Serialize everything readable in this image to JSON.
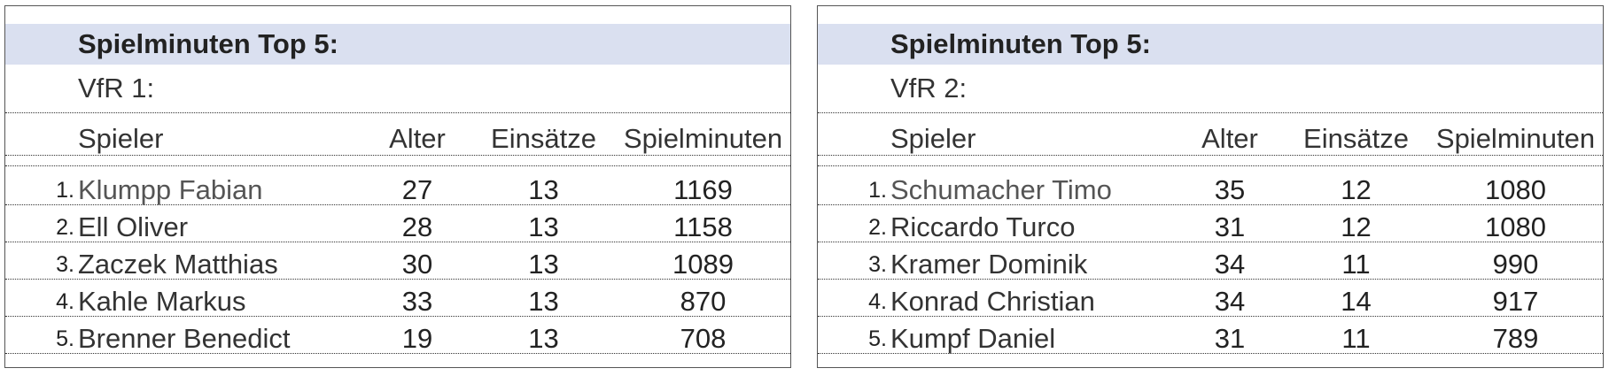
{
  "tables": [
    {
      "title": "Spielminuten Top 5:",
      "team": "VfR 1:",
      "headers": {
        "player": "Spieler",
        "age": "Alter",
        "appearances": "Einsätze",
        "minutes": "Spielminuten"
      },
      "rows": [
        {
          "rank": "1.",
          "name": "Klumpp Fabian",
          "age": "27",
          "appearances": "13",
          "minutes": "1169"
        },
        {
          "rank": "2.",
          "name": "Ell Oliver",
          "age": "28",
          "appearances": "13",
          "minutes": "1158"
        },
        {
          "rank": "3.",
          "name": "Zaczek Matthias",
          "age": "30",
          "appearances": "13",
          "minutes": "1089"
        },
        {
          "rank": "4.",
          "name": "Kahle Markus",
          "age": "33",
          "appearances": "13",
          "minutes": "870"
        },
        {
          "rank": "5.",
          "name": "Brenner Benedict",
          "age": "19",
          "appearances": "13",
          "minutes": "708"
        }
      ]
    },
    {
      "title": "Spielminuten Top 5:",
      "team": "VfR 2:",
      "headers": {
        "player": "Spieler",
        "age": "Alter",
        "appearances": "Einsätze",
        "minutes": "Spielminuten"
      },
      "rows": [
        {
          "rank": "1.",
          "name": "Schumacher Timo",
          "age": "35",
          "appearances": "12",
          "minutes": "1080"
        },
        {
          "rank": "2.",
          "name": "Riccardo Turco",
          "age": "31",
          "appearances": "12",
          "minutes": "1080"
        },
        {
          "rank": "3.",
          "name": "Kramer Dominik",
          "age": "34",
          "appearances": "11",
          "minutes": "990"
        },
        {
          "rank": "4.",
          "name": "Konrad Christian",
          "age": "34",
          "appearances": "14",
          "minutes": "917"
        },
        {
          "rank": "5.",
          "name": "Kumpf Daniel",
          "age": "31",
          "appearances": "11",
          "minutes": "789"
        }
      ]
    }
  ]
}
